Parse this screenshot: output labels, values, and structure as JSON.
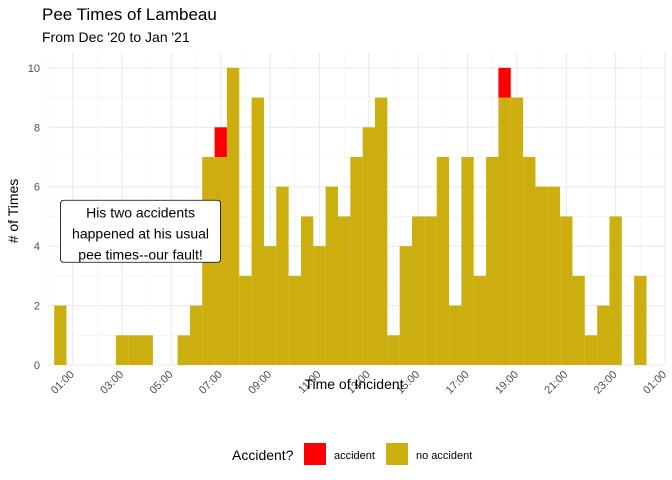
{
  "chart_data": {
    "type": "bar",
    "stacked": true,
    "title": "Pee Times of Lambeau",
    "subtitle": "From Dec '20 to Jan '21",
    "xlabel": "Time of Incident",
    "ylabel": "# of Times",
    "ylim": [
      0,
      10.5
    ],
    "yticks": [
      0,
      2,
      4,
      6,
      8,
      10
    ],
    "xlim": [
      "00:00",
      "01:00 (next day)"
    ],
    "xticks": [
      "01:00",
      "03:00",
      "05:00",
      "07:00",
      "09:00",
      "11:00",
      "13:00",
      "15:00",
      "17:00",
      "19:00",
      "21:00",
      "23:00",
      "01:00"
    ],
    "bin_minutes": 30,
    "x": [
      "00:30",
      "01:00",
      "01:30",
      "02:00",
      "02:30",
      "03:00",
      "03:30",
      "04:00",
      "04:30",
      "05:00",
      "05:30",
      "06:00",
      "06:30",
      "07:00",
      "07:30",
      "08:00",
      "08:30",
      "09:00",
      "09:30",
      "10:00",
      "10:30",
      "11:00",
      "11:30",
      "12:00",
      "12:30",
      "13:00",
      "13:30",
      "14:00",
      "14:30",
      "15:00",
      "15:30",
      "16:00",
      "16:30",
      "17:00",
      "17:30",
      "18:00",
      "18:30",
      "19:00",
      "19:30",
      "20:00",
      "20:30",
      "21:00",
      "21:30",
      "22:00",
      "22:30",
      "23:00",
      "23:30",
      "00:00"
    ],
    "series": [
      {
        "name": "no accident",
        "color": "#CDAE0F",
        "values": [
          2,
          0,
          0,
          0,
          0,
          1,
          1,
          1,
          0,
          0,
          1,
          2,
          7,
          7,
          10,
          3,
          9,
          4,
          6,
          3,
          5,
          4,
          6,
          5,
          7,
          8,
          9,
          1,
          4,
          5,
          5,
          7,
          2,
          7,
          3,
          7,
          9,
          9,
          7,
          6,
          6,
          5,
          3,
          1,
          2,
          5,
          0,
          3
        ]
      },
      {
        "name": "accident",
        "color": "#FF0000",
        "values": [
          0,
          0,
          0,
          0,
          0,
          0,
          0,
          0,
          0,
          0,
          0,
          0,
          0,
          1,
          0,
          0,
          0,
          0,
          0,
          0,
          0,
          0,
          0,
          0,
          0,
          0,
          0,
          0,
          0,
          0,
          0,
          0,
          0,
          0,
          0,
          0,
          1,
          0,
          0,
          0,
          0,
          0,
          0,
          0,
          0,
          0,
          0,
          0
        ]
      }
    ],
    "grid": true,
    "legend": {
      "title": "Accident?",
      "position": "bottom",
      "items": [
        {
          "label": "accident",
          "color": "#FF0000"
        },
        {
          "label": "no accident",
          "color": "#CDAE0F"
        }
      ]
    },
    "annotation": {
      "lines": [
        "His two accidents",
        "happened at his usual",
        "pee times--our fault!"
      ],
      "anchor_time": "03:45",
      "anchor_y": 4.5
    }
  }
}
